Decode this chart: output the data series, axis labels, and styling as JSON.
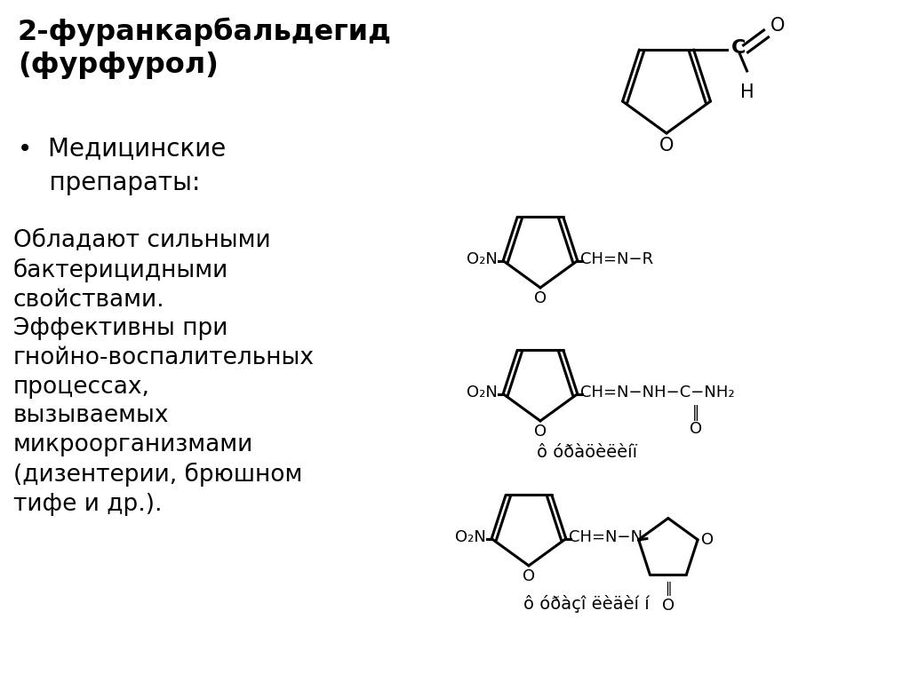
{
  "bg_color": "#ffffff",
  "text_color": "#000000",
  "title": "2-фуранкарбальдегид\n(фурфурол)",
  "bullet": "•  Медицинские\n    препараты:",
  "body": "Обладают сильными\nбактерицидными\nсвойствами.\nЭффективны при\nгнойно-воспалительных\nпроцессах,\nвызываемых\nмикроорганизмами\n(дизентерии, брюшном\nтифе и др.).",
  "label_furatsilin": "ô óðàöèëèíï",
  "label_furazolidon": "ô óðàçî ëèäèí í",
  "lw": 2.2,
  "fs_main": 18,
  "fs_chem": 14,
  "fs_chem_small": 13
}
